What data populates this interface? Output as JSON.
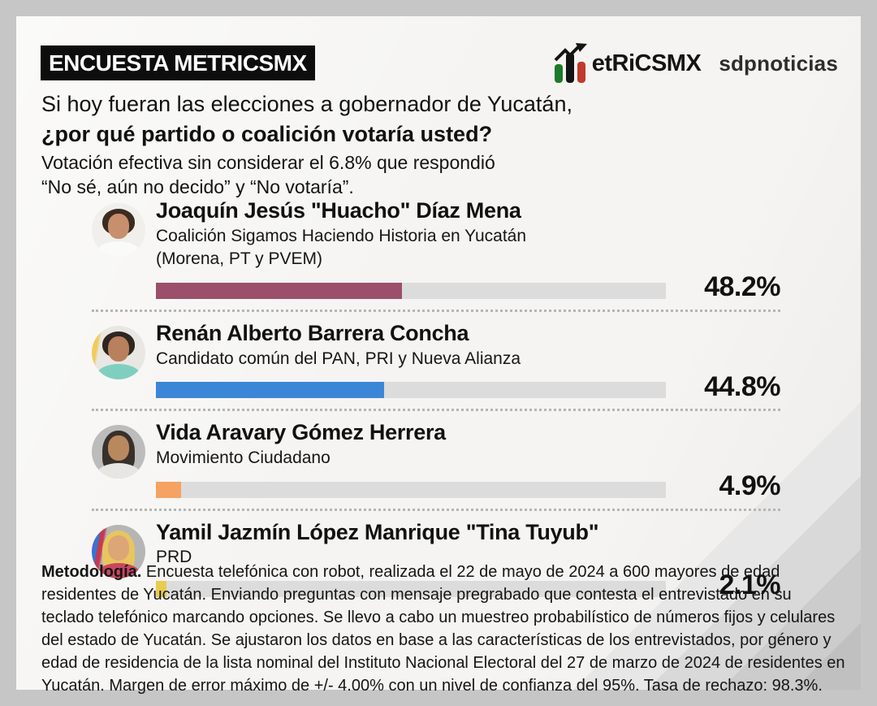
{
  "header": {
    "title": "ENCUESTA METRICSMX",
    "brand": {
      "logo_text": "etRiCSMX",
      "logo_colors": {
        "green": "#1c7a2a",
        "black": "#141414",
        "red": "#c23a2c"
      },
      "partner": "sdpnoticias"
    }
  },
  "question": {
    "line1": "Si hoy fueran las elecciones a gobernador de Yucatán,",
    "line2_bold": "¿por qué partido o coalición votaría usted?",
    "note_line1": "Votación efectiva sin considerar el 6.8% que respondió",
    "note_line2": "“No sé, aún no decido” y “No votaría”."
  },
  "chart_data": {
    "type": "bar",
    "orientation": "horizontal",
    "title": "Si hoy fueran las elecciones a gobernador de Yucatán, ¿por qué partido o coalición votaría usted?",
    "subtitle": "Votación efectiva sin considerar el 6.8% que respondió “No sé, aún no decido” y “No votaría”.",
    "categories": [
      "Joaquín Jesús \"Huacho\" Díaz Mena",
      "Renán Alberto Barrera Concha",
      "Vida Aravary Gómez Herrera",
      "Yamil Jazmín López Manrique \"Tina Tuyub\""
    ],
    "values": [
      48.2,
      44.8,
      4.9,
      2.1
    ],
    "value_labels": [
      "48.2%",
      "44.8%",
      "4.9%",
      "2.1%"
    ],
    "bar_colors": [
      "#9B4F6B",
      "#3C86D8",
      "#F6A263",
      "#E9CB52"
    ],
    "track_color": "#dcdcdc",
    "xlim": [
      0,
      100
    ],
    "grid": false,
    "legend": false
  },
  "candidates": [
    {
      "name": "Joaquín Jesús \"Huacho\" Díaz Mena",
      "party_line1": "Coalición Sigamos Haciendo Historia en Yucatán",
      "party_line2": "(Morena, PT y PVEM)",
      "value": 48.2,
      "value_label": "48.2%",
      "bar_color": "#9B4F6B",
      "avatar": {
        "bg": "#f0efec",
        "hair": "#3b2b21",
        "skin": "#c78f6d",
        "shirt": "#fafaf8",
        "hair_style": "short"
      }
    },
    {
      "name": "Renán Alberto Barrera Concha",
      "party_line1": "Candidato común del PAN, PRI y Nueva Alianza",
      "value": 44.8,
      "value_label": "44.8%",
      "bar_color": "#3C86D8",
      "avatar": {
        "bg": "linear-gradient(100deg, #f2cb5c 0 14%, #e9e7e3 18%)",
        "hair": "#2f261f",
        "skin": "#b8805d",
        "shirt": "#7fcfc0",
        "hair_style": "short"
      }
    },
    {
      "name": "Vida Aravary Gómez Herrera",
      "party_line1": "Movimiento Ciudadano",
      "value": 4.9,
      "value_label": "4.9%",
      "bar_color": "#F6A263",
      "avatar": {
        "bg": "#bcbcbc",
        "hair": "#38302b",
        "skin": "#b9885f",
        "shirt": "#e8e6e2",
        "hair_style": "long"
      }
    },
    {
      "name": "Yamil Jazmín López Manrique \"Tina Tuyub\"",
      "party_line1": "PRD",
      "value": 2.1,
      "value_label": "2.1%",
      "bar_color": "#E9CB52",
      "avatar": {
        "bg": "linear-gradient(100deg, #7a4fd0 0 9%, #2a7bd4 9% 15%, #c43a56 15% 22%, #b5b5b5 26%)",
        "hair": "#e7c65f",
        "skin": "#dca677",
        "shirt": "#c9475f",
        "hair_style": "long"
      }
    }
  ],
  "methodology": {
    "label": "Metodología.",
    "text": " Encuesta telefónica con robot, realizada el 22 de mayo de 2024 a 600 mayores de edad residentes de Yucatán. Enviando preguntas con mensaje pregrabado que contesta el entrevistado en su teclado telefónico marcando opciones. Se llevo a cabo un muestreo probabilístico de números fijos y celulares del estado de Yucatán. Se ajustaron los datos en base a las características de los entrevistados, por género y edad de residencia de la lista nominal del Instituto Nacional Electoral del 27 de marzo de 2024 de residentes en Yucatán. Margen de error máximo de +/- 4.00% con un nivel de confianza del 95%. Tasa de rechazo: 98.3%."
  },
  "colors": {
    "frame": "#c6c6c6",
    "panel": "#f5f4f2",
    "title_box_bg": "#0d0d0d",
    "title_box_text": "#ffffff",
    "text": "#111111",
    "separator": "#b5b5b5"
  }
}
